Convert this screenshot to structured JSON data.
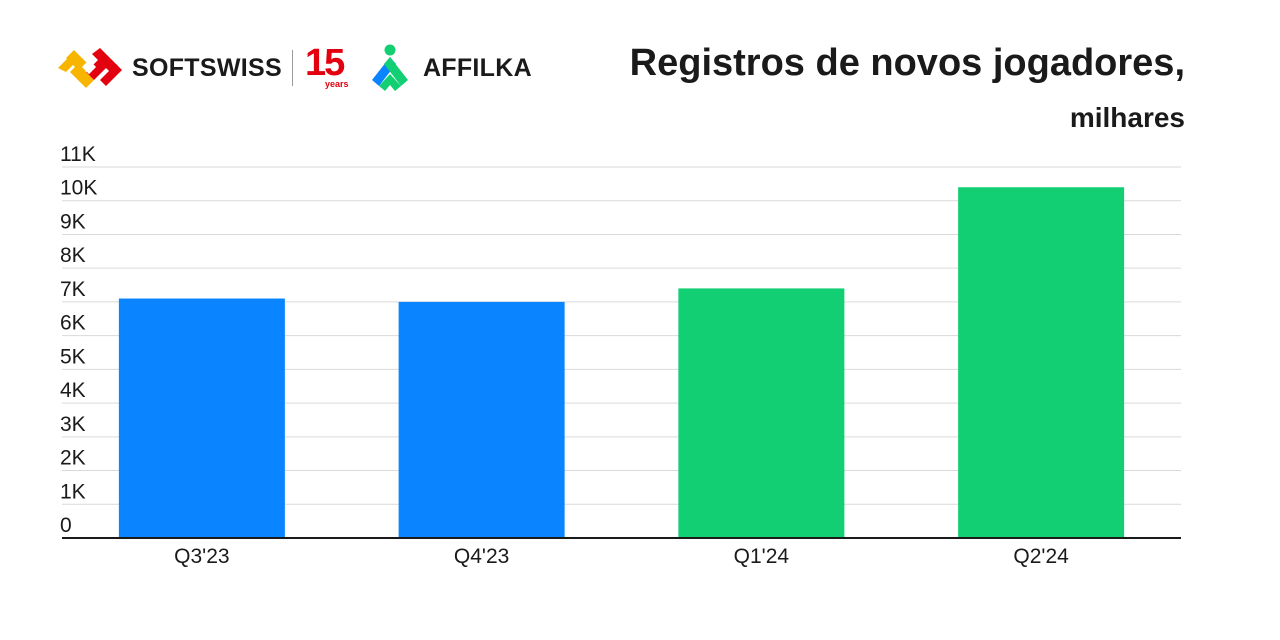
{
  "logos": {
    "softswiss": "SOFTSWISS",
    "years_number": "15",
    "years_word": "years",
    "affilka": "AFFILKA"
  },
  "colors": {
    "blue_bars": "#0a84ff",
    "green_bars": "#12cf74",
    "grid": "#d9d9d9",
    "axis": "#1a1a1a",
    "text": "#1a1a1a",
    "softswiss_yellow": "#f7b500",
    "softswiss_red": "#e3000f",
    "affilka_green": "#12cf74",
    "affilka_blue": "#0a84ff"
  },
  "chart_data": {
    "type": "bar",
    "title": "Registros de novos jogadores,",
    "subtitle": "milhares",
    "categories": [
      "Q3'23",
      "Q4'23",
      "Q1'24",
      "Q2'24"
    ],
    "values": [
      7100,
      7000,
      7400,
      10400
    ],
    "bar_colors": [
      "#0a84ff",
      "#0a84ff",
      "#12cf74",
      "#12cf74"
    ],
    "ylim": [
      0,
      11000
    ],
    "yticks": [
      0,
      1000,
      2000,
      3000,
      4000,
      5000,
      6000,
      7000,
      8000,
      9000,
      10000,
      11000
    ],
    "ytick_labels": [
      "0",
      "1K",
      "2K",
      "3K",
      "4K",
      "5K",
      "6K",
      "7K",
      "8K",
      "9K",
      "10K",
      "11K"
    ],
    "grid": true,
    "legend": "none",
    "xlabel": "",
    "ylabel": ""
  }
}
